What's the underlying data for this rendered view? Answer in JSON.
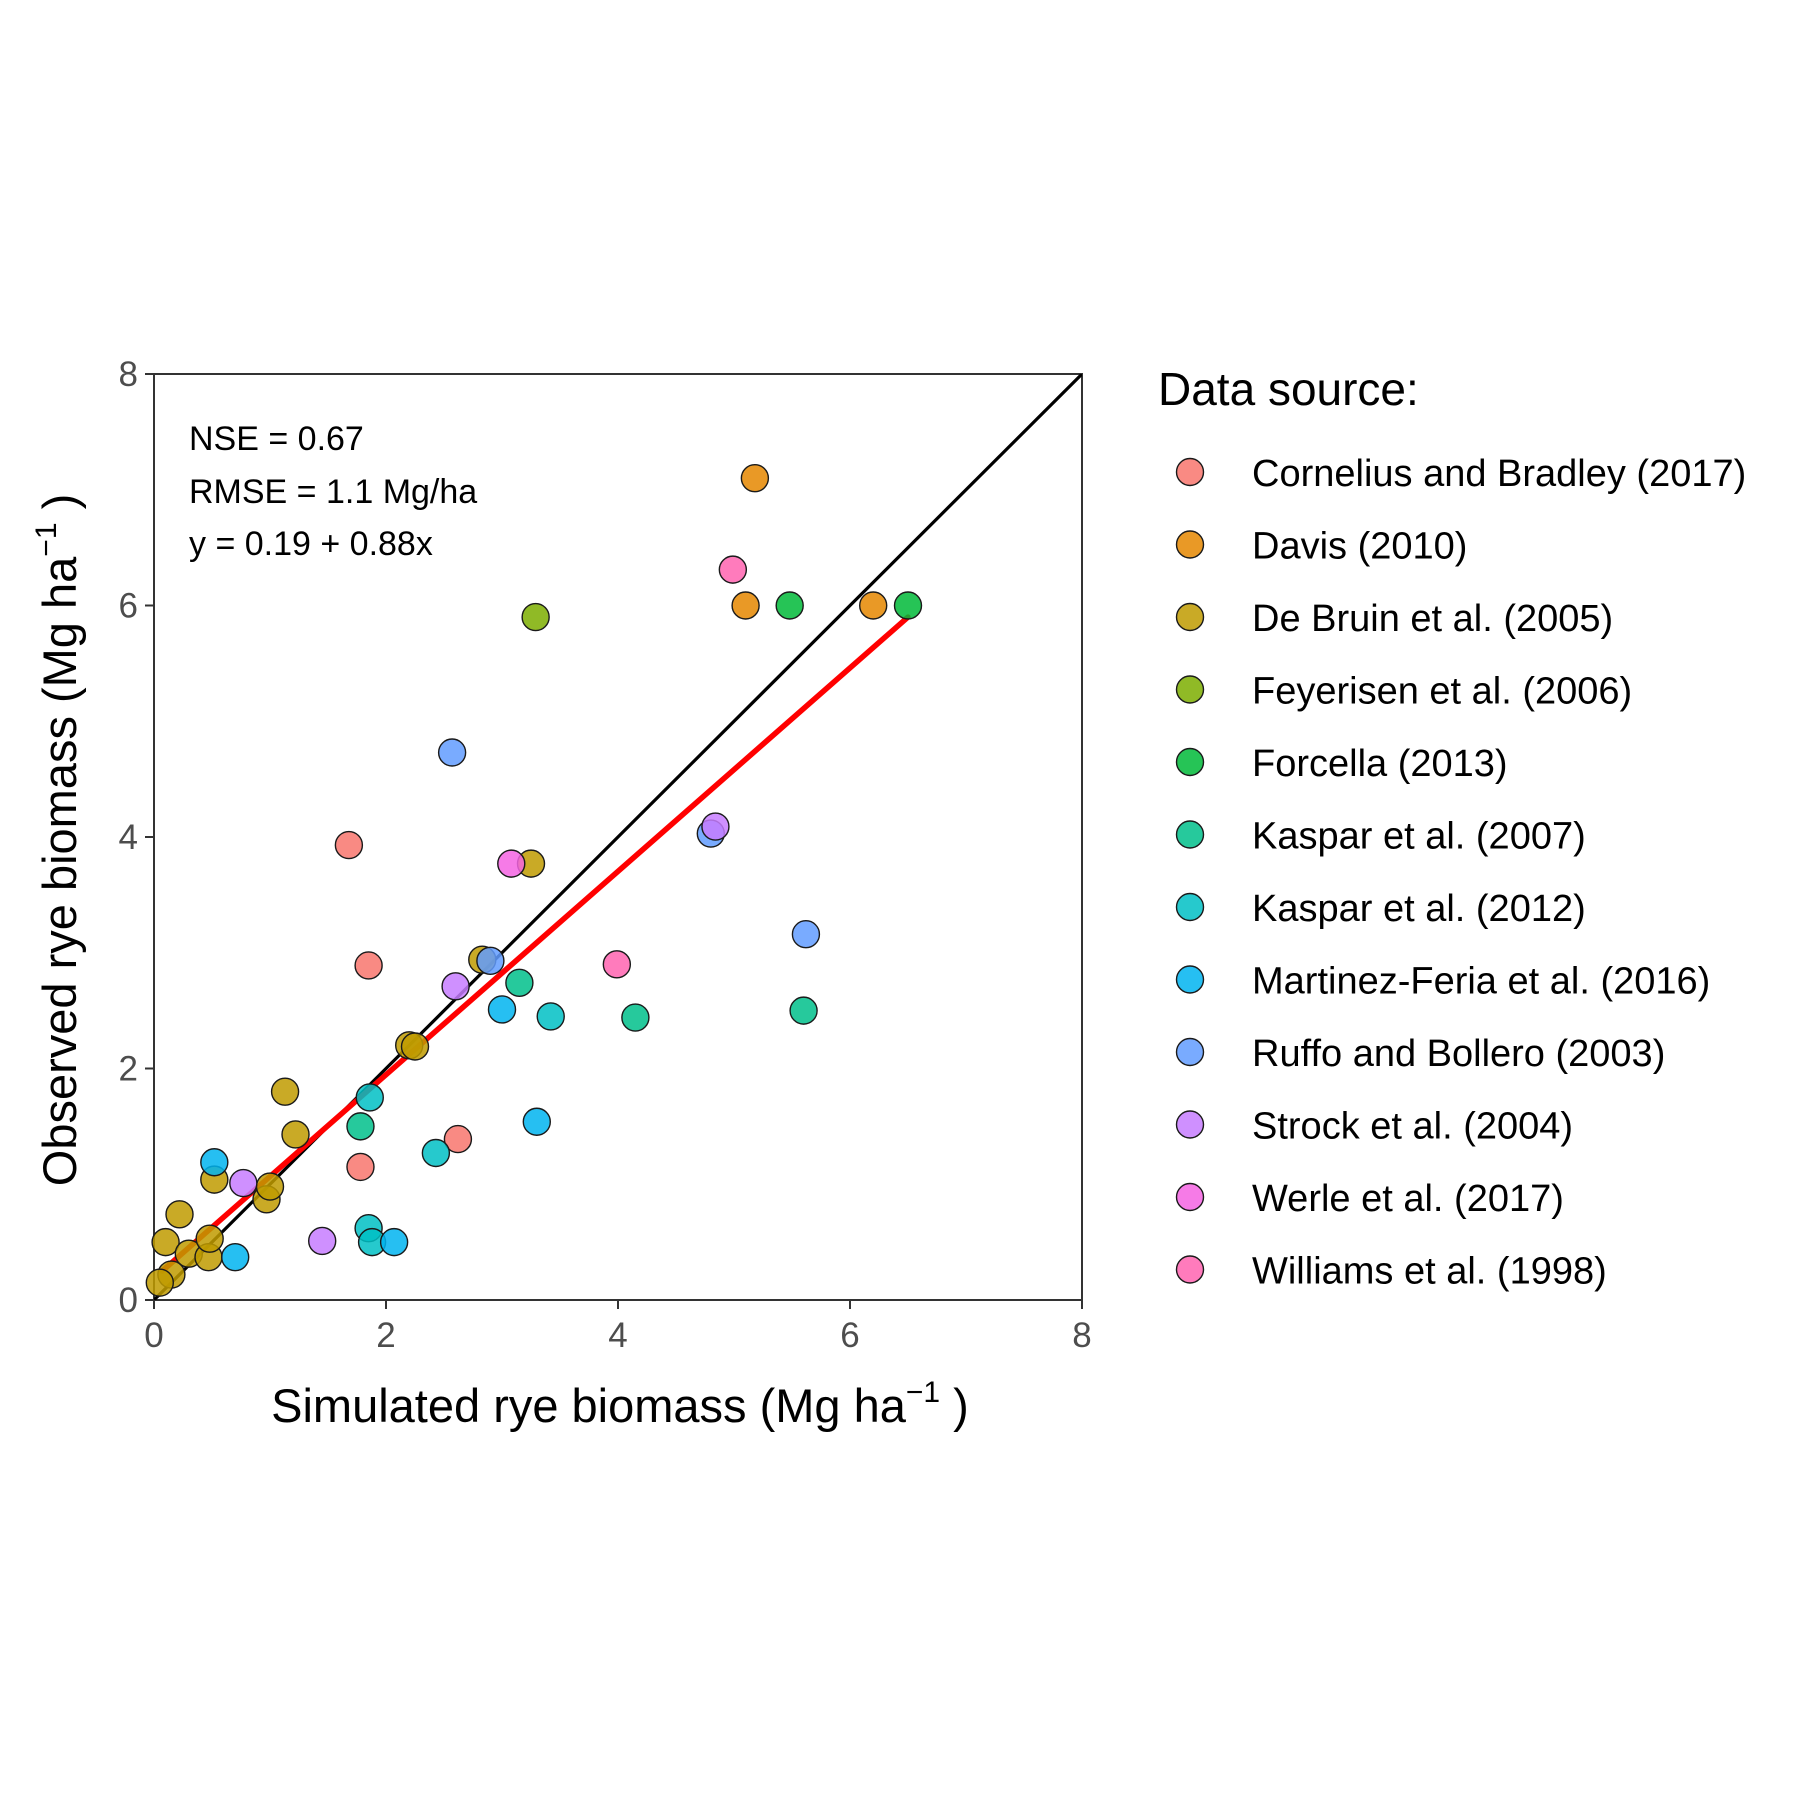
{
  "chart_data": {
    "type": "scatter",
    "xlabel": {
      "main": "Simulated rye biomass (Mg ha",
      "sup": "−1",
      "close": " )"
    },
    "ylabel": {
      "main": "Observed rye biomass (Mg ha",
      "sup": "−1",
      "close": " )"
    },
    "xlim": [
      0,
      8
    ],
    "ylim": [
      0,
      8
    ],
    "xticks": [
      0,
      2,
      4,
      6,
      8
    ],
    "yticks": [
      0,
      2,
      4,
      6,
      8
    ],
    "grid": false,
    "annotations": [
      "NSE = 0.67",
      "RMSE = 1.1 Mg/ha",
      "y = 0.19 + 0.88x"
    ],
    "one_to_one_line": {
      "from": [
        0,
        0
      ],
      "to": [
        8,
        8
      ],
      "color": "#000000"
    },
    "regression_line": {
      "from": [
        0.07,
        0.25
      ],
      "to": [
        6.5,
        5.9
      ],
      "color": "#ff0000"
    },
    "legend": {
      "title": "Data source:",
      "position": "right"
    },
    "series": [
      {
        "name": "Cornelius and Bradley (2017)",
        "color": "#f8766d",
        "points": [
          [
            1.68,
            3.93
          ],
          [
            1.85,
            2.89
          ],
          [
            1.78,
            1.15
          ],
          [
            2.62,
            1.39
          ]
        ]
      },
      {
        "name": "Davis (2010)",
        "color": "#e58700",
        "points": [
          [
            5.18,
            7.1
          ],
          [
            5.1,
            6.0
          ],
          [
            6.2,
            6.0
          ]
        ]
      },
      {
        "name": "De Bruin et al. (2005)",
        "color": "#c09b00",
        "points": [
          [
            0.1,
            0.5
          ],
          [
            0.22,
            0.74
          ],
          [
            0.3,
            0.4
          ],
          [
            0.15,
            0.22
          ],
          [
            0.05,
            0.15
          ],
          [
            0.47,
            0.37
          ],
          [
            0.48,
            0.53
          ],
          [
            0.52,
            1.04
          ],
          [
            0.97,
            0.87
          ],
          [
            1.0,
            0.98
          ],
          [
            1.13,
            1.8
          ],
          [
            1.22,
            1.43
          ],
          [
            2.2,
            2.2
          ],
          [
            2.25,
            2.19
          ],
          [
            2.83,
            2.94
          ],
          [
            3.25,
            3.77
          ]
        ]
      },
      {
        "name": "Feyerisen et al. (2006)",
        "color": "#7cae00",
        "points": [
          [
            3.29,
            5.9
          ]
        ]
      },
      {
        "name": "Forcella (2013)",
        "color": "#00ba38",
        "points": [
          [
            5.48,
            6.0
          ],
          [
            6.5,
            6.0
          ]
        ]
      },
      {
        "name": "Kaspar et al. (2007)",
        "color": "#00c08b",
        "points": [
          [
            3.15,
            2.74
          ],
          [
            4.15,
            2.44
          ],
          [
            5.6,
            2.5
          ],
          [
            1.78,
            1.5
          ]
        ]
      },
      {
        "name": "Kaspar et al. (2012)",
        "color": "#00bfc4",
        "points": [
          [
            3.42,
            2.45
          ],
          [
            1.86,
            1.75
          ],
          [
            2.43,
            1.27
          ],
          [
            1.85,
            0.62
          ],
          [
            1.88,
            0.5
          ]
        ]
      },
      {
        "name": "Martinez-Feria et al. (2016)",
        "color": "#00b4f0",
        "points": [
          [
            0.52,
            1.19
          ],
          [
            0.7,
            0.37
          ],
          [
            3.0,
            2.51
          ],
          [
            3.3,
            1.54
          ],
          [
            2.07,
            0.5
          ]
        ]
      },
      {
        "name": "Ruffo and Bollero (2003)",
        "color": "#619cff",
        "points": [
          [
            2.57,
            4.73
          ],
          [
            4.8,
            4.03
          ],
          [
            5.62,
            3.16
          ],
          [
            2.9,
            2.93
          ]
        ]
      },
      {
        "name": "Strock et al. (2004)",
        "color": "#c77cff",
        "points": [
          [
            0.77,
            1.01
          ],
          [
            1.45,
            0.51
          ],
          [
            2.6,
            2.71
          ],
          [
            4.84,
            4.09
          ]
        ]
      },
      {
        "name": "Werle et al. (2017)",
        "color": "#f564e3",
        "points": [
          [
            3.08,
            3.77
          ]
        ]
      },
      {
        "name": "Williams et al. (1998)",
        "color": "#ff64b0",
        "points": [
          [
            4.99,
            6.31
          ],
          [
            3.99,
            2.9
          ]
        ]
      }
    ]
  }
}
